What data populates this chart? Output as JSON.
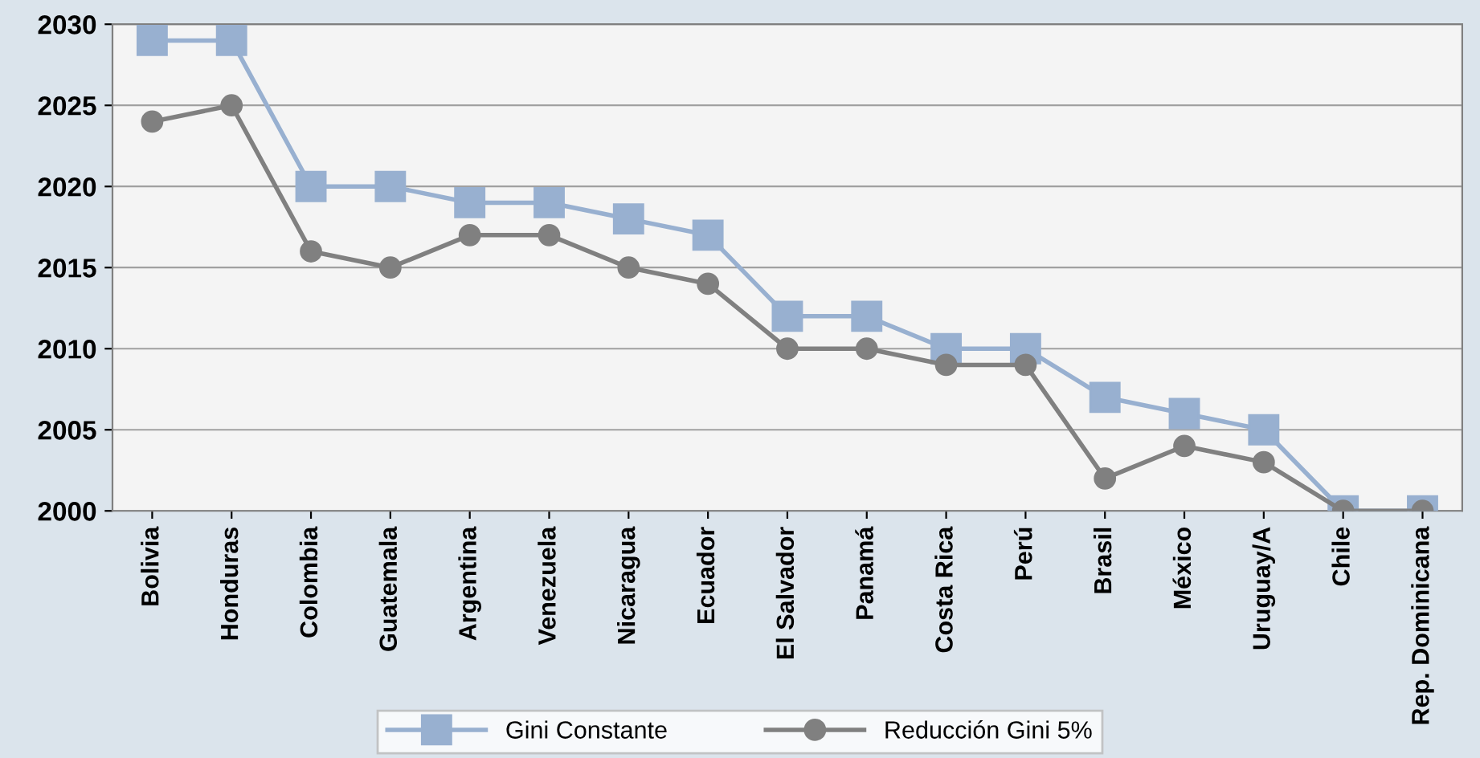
{
  "chart_data": {
    "type": "line",
    "categories": [
      "Bolivia",
      "Honduras",
      "Colombia",
      "Guatemala",
      "Argentina",
      "Venezuela",
      "Nicaragua",
      "Ecuador",
      "El Salvador",
      "Panamá",
      "Costa Rica",
      "Perú",
      "Brasil",
      "México",
      "Uruguay/A",
      "Chile",
      "Rep. Dominicana"
    ],
    "series": [
      {
        "name": "Gini Constante",
        "color": "#98b0d0",
        "marker": "square",
        "values": [
          2029,
          2029,
          2020,
          2020,
          2019,
          2019,
          2018,
          2017,
          2012,
          2012,
          2010,
          2010,
          2007,
          2006,
          2005,
          2000,
          2000
        ]
      },
      {
        "name": "Reducción Gini 5%",
        "color": "#808080",
        "marker": "circle",
        "values": [
          2024,
          2025,
          2016,
          2015,
          2017,
          2017,
          2015,
          2014,
          2010,
          2010,
          2009,
          2009,
          2002,
          2004,
          2003,
          2000,
          2000
        ]
      }
    ],
    "ylim": [
      2000,
      2030
    ],
    "yticks": [
      2000,
      2005,
      2010,
      2015,
      2020,
      2025,
      2030
    ],
    "grid": "y",
    "legend": "bottom",
    "line_style": "solid"
  }
}
